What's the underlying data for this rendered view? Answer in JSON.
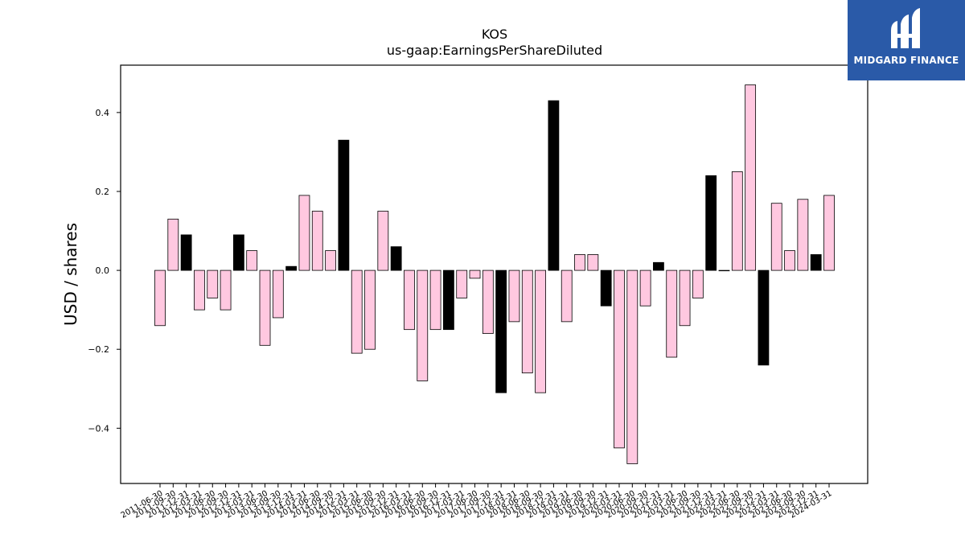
{
  "brand": {
    "name": "MIDGARD FINANCE",
    "color": "#2a5aa8"
  },
  "chart_data": {
    "type": "bar",
    "title": "KOS",
    "subtitle": "us-gaap:EarningsPerShareDiluted",
    "xlabel": "",
    "ylabel": "USD / shares",
    "ylim": [
      -0.54,
      0.52
    ],
    "yticks": [
      -0.4,
      -0.2,
      0.0,
      0.2,
      0.4
    ],
    "grid": false,
    "legend": "none",
    "colors": {
      "default": "#ffc8e0",
      "highlight": "#000000",
      "edge": "#000000"
    },
    "categories": [
      "2011-06-30",
      "2011-09-30",
      "2011-12-31",
      "2012-03-31",
      "2012-06-30",
      "2012-09-30",
      "2012-12-31",
      "2013-03-31",
      "2013-06-30",
      "2013-09-30",
      "2013-12-31",
      "2014-03-31",
      "2014-06-30",
      "2014-09-30",
      "2014-12-31",
      "2015-03-31",
      "2015-06-30",
      "2015-09-30",
      "2015-12-31",
      "2016-03-31",
      "2016-06-30",
      "2016-09-30",
      "2016-12-31",
      "2017-03-31",
      "2017-06-30",
      "2017-09-30",
      "2017-12-31",
      "2018-03-31",
      "2018-06-30",
      "2018-09-30",
      "2018-12-31",
      "2019-03-31",
      "2019-06-30",
      "2019-09-30",
      "2019-12-31",
      "2020-03-31",
      "2020-06-30",
      "2020-09-30",
      "2020-12-31",
      "2021-03-31",
      "2021-06-30",
      "2021-09-30",
      "2021-12-31",
      "2022-03-31",
      "2022-06-30",
      "2022-09-30",
      "2022-12-31",
      "2023-03-31",
      "2023-06-30",
      "2023-09-30",
      "2023-12-31",
      "2024-03-31"
    ],
    "values": [
      -0.14,
      0.13,
      0.09,
      -0.1,
      -0.07,
      -0.1,
      0.09,
      0.05,
      -0.19,
      -0.12,
      0.01,
      0.19,
      0.15,
      0.05,
      0.33,
      -0.21,
      -0.2,
      0.15,
      0.06,
      -0.15,
      -0.28,
      -0.15,
      -0.15,
      -0.07,
      -0.02,
      -0.16,
      -0.31,
      -0.13,
      -0.26,
      -0.31,
      0.43,
      -0.13,
      0.04,
      0.04,
      -0.09,
      -0.45,
      -0.49,
      -0.09,
      0.02,
      -0.22,
      -0.14,
      -0.07,
      0.24,
      0.0,
      0.25,
      0.47,
      -0.24,
      0.17,
      0.05,
      0.18,
      0.04,
      0.19
    ],
    "highlight": [
      false,
      false,
      true,
      false,
      false,
      false,
      true,
      false,
      false,
      false,
      true,
      false,
      false,
      false,
      true,
      false,
      false,
      false,
      true,
      false,
      false,
      false,
      true,
      false,
      false,
      false,
      true,
      false,
      false,
      false,
      true,
      false,
      false,
      false,
      true,
      false,
      false,
      false,
      true,
      false,
      false,
      false,
      true,
      false,
      false,
      false,
      true,
      false,
      false,
      false,
      true,
      false
    ]
  }
}
